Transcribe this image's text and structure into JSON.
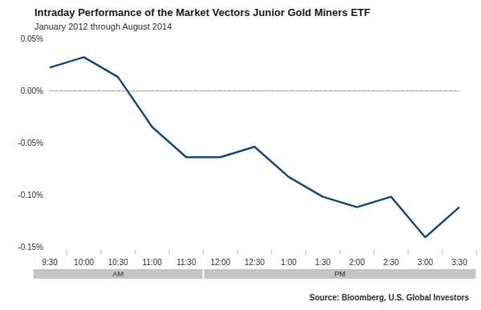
{
  "chart_data": {
    "type": "line",
    "title": "Intraday Performance of the Market Vectors Junior Gold Miners ETF",
    "subtitle": "January 2012 through August 2014",
    "categories": [
      "9:30",
      "10:00",
      "10:30",
      "11:00",
      "11:30",
      "12:00",
      "12:30",
      "1:00",
      "1:30",
      "2:00",
      "2:30",
      "3:00",
      "3:30"
    ],
    "values": [
      0.022,
      0.032,
      0.013,
      -0.035,
      -0.064,
      -0.064,
      -0.054,
      -0.083,
      -0.102,
      -0.112,
      -0.102,
      -0.141,
      -0.112
    ],
    "color": "#1b4b7a",
    "ylim": [
      -0.15,
      0.05
    ],
    "yticks": [
      {
        "value": -0.15,
        "label": "-0.15%"
      },
      {
        "value": -0.1,
        "label": "-0.10%"
      },
      {
        "value": -0.05,
        "label": "-0.05%"
      },
      {
        "value": 0,
        "label": "0.00%"
      },
      {
        "value": 0.05,
        "label": "0.05%"
      }
    ],
    "grid": false,
    "annotations": [
      {
        "text": "AM",
        "from": "9:30",
        "to": "11:30"
      },
      {
        "text": "PM",
        "from": "12:00",
        "to": "3:30"
      }
    ],
    "source": "Source: Bloomberg, U.S. Global Investors"
  }
}
